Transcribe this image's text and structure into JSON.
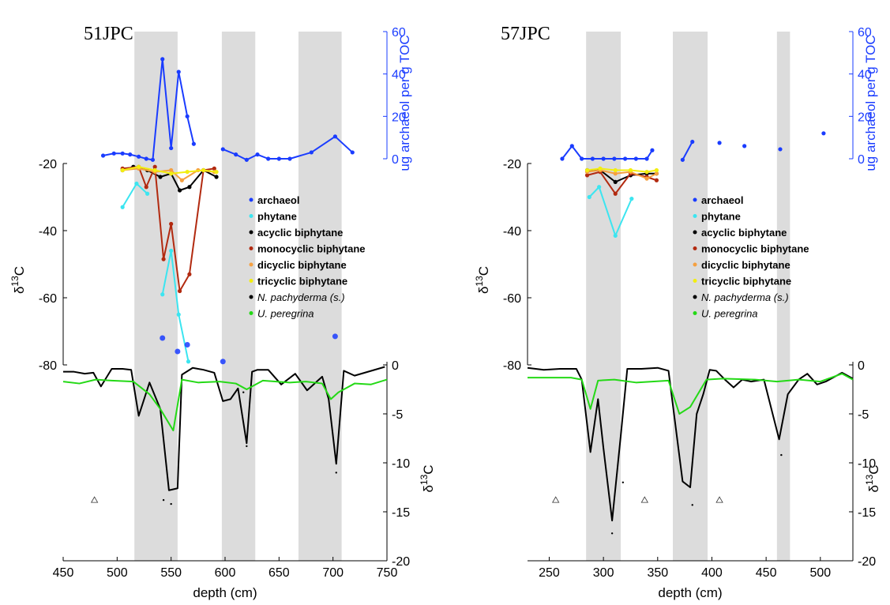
{
  "chart_data": [
    {
      "type": "line",
      "title": "51JPC",
      "xlabel": "depth (cm)",
      "xlim": [
        450,
        750
      ],
      "xticks": [
        "450",
        "500",
        "550",
        "600",
        "650",
        "700",
        "750"
      ],
      "shaded_intervals": [
        [
          516,
          556
        ],
        [
          597,
          628
        ],
        [
          668,
          708
        ]
      ],
      "archaeol_axis": {
        "label": "ug archaeol per g TOC",
        "lim": [
          0,
          60
        ],
        "ticks": [
          "0",
          "20",
          "40",
          "60"
        ]
      },
      "lipid_axis": {
        "label": "δ13C",
        "lim": [
          -80,
          -20
        ],
        "ticks": [
          "-20",
          "-40",
          "-60",
          "-80"
        ]
      },
      "foram_axis": {
        "label": "δ13C",
        "lim": [
          -20,
          0
        ],
        "ticks": [
          "0",
          "-5",
          "-10",
          "-15",
          "-20"
        ]
      },
      "legend": [
        "archaeol",
        "phytane",
        "acyclic biphytane",
        "monocyclic biphytane",
        "dicyclic biphytane",
        "tricyclic biphytane",
        "N. pachyderma (s.)",
        "U. peregrina"
      ],
      "series": [
        {
          "name": "archaeol",
          "axis": "archaeol",
          "color": "#1a3cff",
          "x": [
            487,
            497,
            505,
            512,
            520,
            527,
            533,
            542,
            550,
            557,
            565,
            571
          ],
          "y": [
            1.5,
            2.5,
            2.5,
            2,
            1,
            0,
            -0.5,
            47,
            5,
            41,
            20,
            7
          ]
        },
        {
          "name": "archaeol",
          "axis": "archaeol",
          "color": "#1a3cff",
          "x": [
            598,
            610,
            620,
            630,
            640,
            650,
            660,
            680,
            702,
            718
          ],
          "y": [
            4.5,
            2,
            -0.5,
            2,
            0,
            0,
            0,
            3,
            10.5,
            3
          ]
        },
        {
          "name": "phytane",
          "axis": "lipid",
          "color": "#3ce5f0",
          "x": [
            505,
            518,
            528
          ],
          "y": [
            -33,
            -26,
            -29
          ]
        },
        {
          "name": "phytane",
          "axis": "lipid",
          "color": "#3ce5f0",
          "x": [
            542,
            550,
            557,
            566
          ],
          "y": [
            -59,
            -46,
            -65,
            -79
          ]
        },
        {
          "name": "acyclic biphytane",
          "axis": "lipid",
          "color": "#000000",
          "x": [
            505,
            515,
            528,
            540,
            550,
            558,
            567,
            580,
            592
          ],
          "y": [
            -22,
            -21,
            -22,
            -24,
            -23,
            -28,
            -27,
            -22,
            -24
          ]
        },
        {
          "name": "monocyclic biphytane",
          "axis": "lipid",
          "color": "#b22a10",
          "x": [
            505,
            520,
            527,
            535,
            543,
            550,
            558,
            567,
            580,
            590
          ],
          "y": [
            -21.5,
            -21,
            -27,
            -21,
            -48.5,
            -38,
            -58,
            -53,
            -22,
            -21.5
          ]
        },
        {
          "name": "dicyclic biphytane",
          "axis": "lipid",
          "color": "#f5a040",
          "x": [
            505,
            520,
            535,
            550,
            560,
            575,
            590
          ],
          "y": [
            -22,
            -21.5,
            -22.5,
            -22,
            -25,
            -22,
            -22.5
          ]
        },
        {
          "name": "tricyclic biphytane",
          "axis": "lipid",
          "color": "#f2ee10",
          "x": [
            505,
            520,
            535,
            550,
            565,
            580,
            592
          ],
          "y": [
            -22,
            -21,
            -22,
            -23,
            -22.5,
            -22,
            -22.5
          ]
        },
        {
          "name": "N. pachyderma (s.)",
          "axis": "foram",
          "color": "#000000",
          "x": [
            450,
            460,
            470,
            478,
            485,
            495,
            505,
            513,
            520,
            530,
            540,
            548,
            556,
            560,
            570,
            580,
            590,
            598,
            605,
            612,
            620,
            625,
            630,
            640,
            652,
            665,
            676,
            690,
            696,
            703,
            710,
            720,
            748
          ],
          "y": [
            -0.7,
            -0.7,
            -0.9,
            -0.8,
            -2.2,
            -0.4,
            -0.4,
            -0.5,
            -5.2,
            -1.8,
            -4.5,
            -12.8,
            -12.6,
            -1,
            -0.3,
            -0.5,
            -0.8,
            -3.7,
            -3.5,
            -2.4,
            -8,
            -0.7,
            -0.5,
            -0.5,
            -2,
            -0.9,
            -2.6,
            -1.2,
            -3.5,
            -10.1,
            -0.6,
            -1.1,
            -0.2
          ]
        },
        {
          "name": "U. peregrina",
          "axis": "foram",
          "color": "#24d916",
          "x": [
            450,
            465,
            480,
            495,
            515,
            530,
            540,
            552,
            560,
            575,
            595,
            610,
            620,
            635,
            660,
            675,
            690,
            698,
            705,
            720,
            735,
            750
          ],
          "y": [
            -1.7,
            -1.9,
            -1.5,
            -1.6,
            -1.7,
            -3,
            -4.5,
            -6.7,
            -1.5,
            -1.8,
            -1.7,
            -1.9,
            -2.5,
            -1.6,
            -1.8,
            -1.7,
            -1.9,
            -3.5,
            -2.8,
            -1.9,
            -2,
            -1.5
          ]
        }
      ],
      "markers": [
        {
          "series": "archaeol",
          "axis": "lipid",
          "x": [
            542,
            556,
            565,
            598,
            702
          ],
          "y": [
            -72,
            -76,
            -74,
            -79,
            -71.5
          ]
        },
        {
          "series": "N. pachyderma (s.)",
          "axis": "foram",
          "x": [
            543,
            550,
            617,
            620,
            703
          ],
          "y": [
            -13.8,
            -14.2,
            -2.8,
            -8.3,
            -11
          ],
          "style": "dot"
        },
        {
          "series": "triangle",
          "axis": "foram",
          "x": [
            479
          ],
          "y": [
            -13.8
          ],
          "style": "triangle"
        }
      ]
    },
    {
      "type": "line",
      "title": "57JPC",
      "xlabel": "depth (cm)",
      "xlim": [
        230,
        530
      ],
      "xticks": [
        "250",
        "300",
        "350",
        "400",
        "450",
        "500"
      ],
      "shaded_intervals": [
        [
          284,
          316
        ],
        [
          364,
          396
        ],
        [
          460,
          472
        ]
      ],
      "archaeol_axis": {
        "label": "ug archaeol per g TOC",
        "lim": [
          0,
          60
        ],
        "ticks": [
          "0",
          "20",
          "40",
          "60"
        ]
      },
      "lipid_axis": {
        "label": "δ13C",
        "lim": [
          -80,
          -20
        ],
        "ticks": [
          "-20",
          "-40",
          "-60",
          "-80"
        ]
      },
      "foram_axis": {
        "label": "δ13C",
        "lim": [
          -20,
          0
        ],
        "ticks": [
          "0",
          "-5",
          "-10",
          "-15",
          "-20"
        ]
      },
      "legend": [
        "archaeol",
        "phytane",
        "acyclic biphytane",
        "monocyclic biphytane",
        "dicyclic biphytane",
        "tricyclic biphytane",
        "N. pachyderma (s.)",
        "U. peregrina"
      ],
      "series": [
        {
          "name": "archaeol",
          "axis": "archaeol",
          "color": "#1a3cff",
          "x": [
            262,
            271,
            280,
            290,
            300,
            310,
            320,
            330,
            340,
            345
          ],
          "y": [
            0,
            6,
            0,
            0,
            0,
            0,
            0,
            0,
            0,
            4
          ]
        },
        {
          "name": "archaeol",
          "axis": "archaeol",
          "color": "#1a3cff",
          "x": [
            373,
            382
          ],
          "y": [
            -0.5,
            8
          ]
        },
        {
          "name": "archaeol",
          "axis": "archaeol",
          "color": "#1a3cff",
          "x": [
            407,
            430,
            463,
            503
          ],
          "y": [
            7.5,
            6,
            4.5,
            12
          ],
          "lines": false
        },
        {
          "name": "phytane",
          "axis": "lipid",
          "color": "#3ce5f0",
          "x": [
            287,
            296,
            311,
            326
          ],
          "y": [
            -30,
            -27,
            -41.5,
            -30.5
          ]
        },
        {
          "name": "acyclic biphytane",
          "axis": "lipid",
          "color": "#000000",
          "x": [
            285,
            297,
            311,
            325,
            340,
            349
          ],
          "y": [
            -22,
            -22,
            -25.5,
            -23.5,
            -23,
            -23
          ]
        },
        {
          "name": "monocyclic biphytane",
          "axis": "lipid",
          "color": "#b22a10",
          "x": [
            285,
            297,
            311,
            325,
            340,
            349
          ],
          "y": [
            -23.5,
            -22.5,
            -29,
            -23,
            -24,
            -25
          ]
        },
        {
          "name": "dicyclic biphytane",
          "axis": "lipid",
          "color": "#f5a040",
          "x": [
            285,
            297,
            311,
            325,
            340,
            349
          ],
          "y": [
            -22.5,
            -22,
            -23,
            -22.5,
            -24.5,
            -23
          ]
        },
        {
          "name": "tricyclic biphytane",
          "axis": "lipid",
          "color": "#f2ee10",
          "x": [
            285,
            297,
            311,
            325,
            340,
            349
          ],
          "y": [
            -22,
            -21.5,
            -22,
            -22,
            -22.5,
            -22
          ]
        },
        {
          "name": "N. pachyderma (s.)",
          "axis": "foram",
          "color": "#000000",
          "x": [
            230,
            245,
            260,
            275,
            280,
            288,
            295,
            300,
            308,
            316,
            322,
            335,
            350,
            360,
            373,
            380,
            386,
            392,
            398,
            404,
            412,
            420,
            428,
            436,
            448,
            456,
            462,
            470,
            480,
            488,
            497,
            505,
            520,
            530
          ],
          "y": [
            -0.3,
            -0.5,
            -0.4,
            -0.4,
            -1.5,
            -8.9,
            -3.5,
            -8.5,
            -15.9,
            -7.2,
            -0.4,
            -0.4,
            -0.3,
            -0.6,
            -11.9,
            -12.5,
            -5,
            -3,
            -0.5,
            -0.6,
            -1.5,
            -2.3,
            -1.5,
            -1.7,
            -1.5,
            -5,
            -7.6,
            -3,
            -1.5,
            -0.9,
            -2,
            -1.7,
            -0.8,
            -1.4
          ]
        },
        {
          "name": "U. peregrina",
          "axis": "foram",
          "color": "#24d916",
          "x": [
            230,
            250,
            270,
            280,
            288,
            295,
            310,
            330,
            360,
            370,
            380,
            395,
            410,
            440,
            460,
            480,
            500,
            520,
            530
          ],
          "y": [
            -1.3,
            -1.3,
            -1.3,
            -1.5,
            -4.5,
            -1.6,
            -1.5,
            -1.8,
            -1.6,
            -5,
            -4.3,
            -1.5,
            -1.4,
            -1.5,
            -1.7,
            -1.5,
            -1.7,
            -0.9,
            -1.5
          ]
        }
      ],
      "markers": [
        {
          "series": "N. pachyderma (s.)",
          "axis": "foram",
          "x": [
            308,
            318,
            382,
            464
          ],
          "y": [
            -17.2,
            -12,
            -14.3,
            -9.2
          ],
          "style": "dot"
        },
        {
          "series": "triangle",
          "axis": "foram",
          "x": [
            256,
            338,
            407
          ],
          "y": [
            -13.8,
            -13.8,
            -13.8
          ],
          "style": "triangle"
        }
      ]
    }
  ]
}
